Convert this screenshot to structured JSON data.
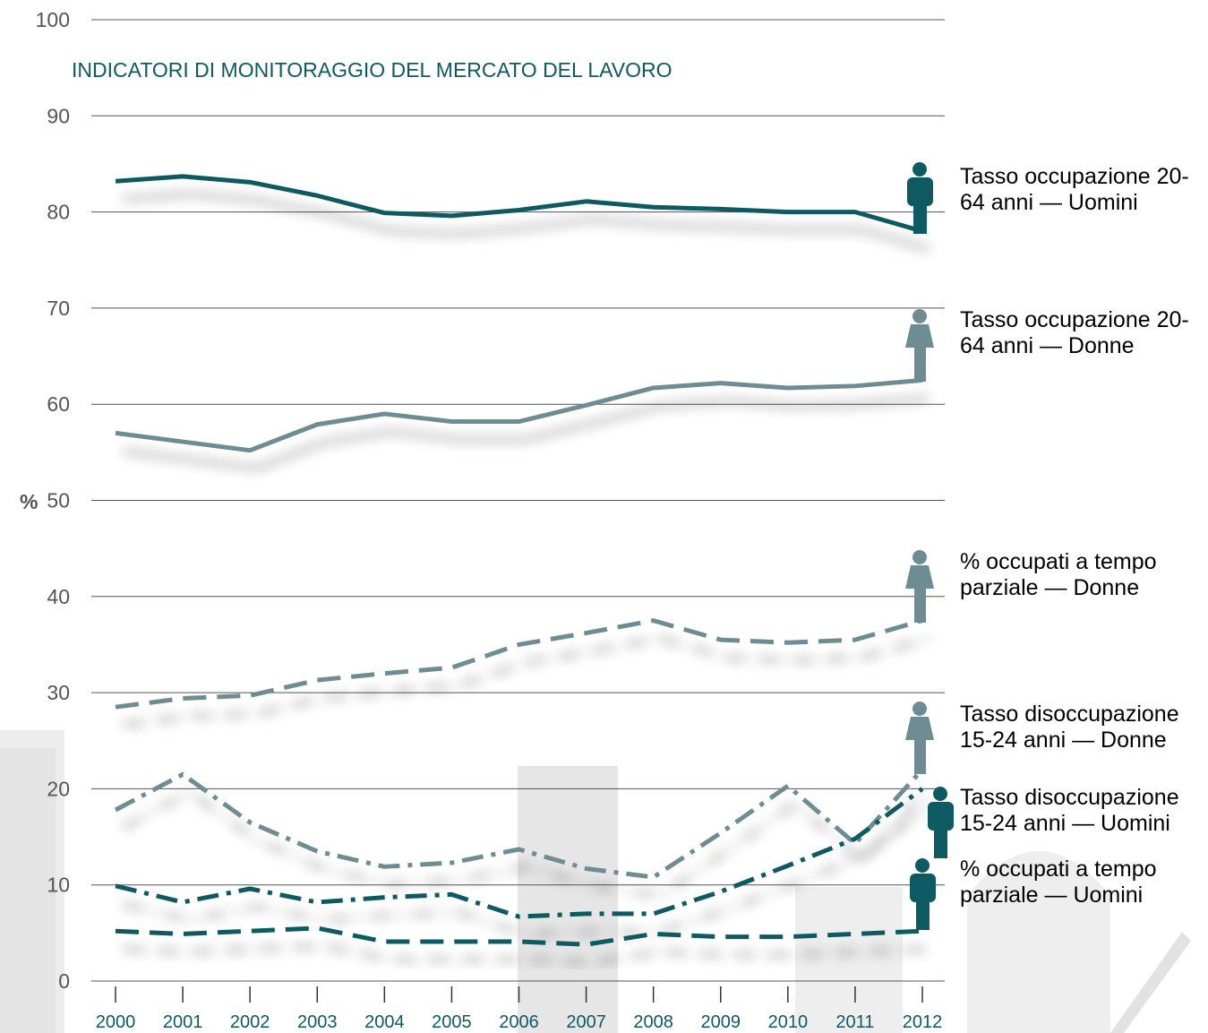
{
  "chart_data": {
    "type": "line",
    "title": "INDICATORI DI MONITORAGGIO DEL MERCATO DEL LAVORO",
    "y_label": "%",
    "x": [
      2000,
      2001,
      2002,
      2003,
      2004,
      2005,
      2006,
      2007,
      2008,
      2009,
      2010,
      2011,
      2012
    ],
    "xlim": [
      2000,
      2012
    ],
    "ylim": [
      0,
      100
    ],
    "yticks": [
      0,
      10,
      20,
      30,
      40,
      50,
      60,
      70,
      80,
      90,
      100
    ],
    "grid": true,
    "series": [
      {
        "name": "Tasso occupazione 20-64 anni — Uomini",
        "color": "#0e5a63",
        "style": "solid",
        "values": [
          83.2,
          83.7,
          83.1,
          81.7,
          79.9,
          79.6,
          80.2,
          81.1,
          80.5,
          80.3,
          80.0,
          80.0,
          78.0
        ]
      },
      {
        "name": "Tasso occupazione 20-64 anni — Donne",
        "color": "#6e8c93",
        "style": "solid",
        "values": [
          57.0,
          56.1,
          55.2,
          57.9,
          59.0,
          58.2,
          58.2,
          59.9,
          61.7,
          62.2,
          61.7,
          61.9,
          62.5
        ]
      },
      {
        "name": "% occupati a tempo parziale — Donne",
        "color": "#6e8c93",
        "style": "dashed",
        "values": [
          28.5,
          29.4,
          29.7,
          31.3,
          32.0,
          32.6,
          35.0,
          36.2,
          37.5,
          35.5,
          35.2,
          35.5,
          37.5
        ]
      },
      {
        "name": "Tasso disoccupazione 15-24 anni — Donne",
        "color": "#6e8c93",
        "style": "dashdot",
        "values": [
          17.8,
          21.5,
          16.5,
          13.5,
          11.9,
          12.3,
          13.7,
          11.7,
          10.8,
          15.4,
          20.3,
          14.3,
          22.0
        ]
      },
      {
        "name": "Tasso disoccupazione 15-24 anni — Uomini",
        "color": "#0e5a63",
        "style": "dashdot",
        "values": [
          9.9,
          8.2,
          9.6,
          8.2,
          8.7,
          9.0,
          6.7,
          7.0,
          7.0,
          9.3,
          12.0,
          14.8,
          20.0
        ]
      },
      {
        "name": "% occupati a tempo parziale — Uomini",
        "color": "#0e5a63",
        "style": "dashed",
        "values": [
          5.2,
          4.9,
          5.2,
          5.5,
          4.1,
          4.1,
          4.1,
          3.8,
          4.9,
          4.6,
          4.6,
          4.9,
          5.2
        ]
      }
    ]
  }
}
